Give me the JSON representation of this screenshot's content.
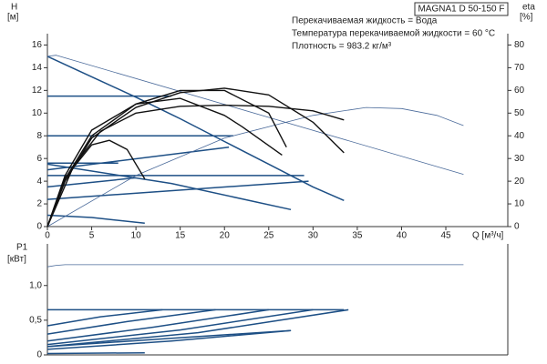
{
  "chart_data": [
    {
      "type": "line",
      "title": "MAGNA1 D 50-150 F",
      "annotations": [
        "Перекачиваемая жидкость = Вода",
        "Температура перекачиваемой жидкости = 60 °C",
        "Плотность = 983.2 кг/м³"
      ],
      "y_label": "H",
      "y_unit": "[м]",
      "y2_label": "eta",
      "y2_unit": "[%]",
      "x_label": "Q [м³/ч]",
      "xlim": [
        0,
        52
      ],
      "xticks": [
        0,
        5,
        10,
        15,
        20,
        25,
        30,
        35,
        40,
        45
      ],
      "ylim": [
        0,
        17
      ],
      "yticks": [
        0,
        2,
        4,
        6,
        8,
        10,
        12,
        14,
        16
      ],
      "y2lim": [
        0,
        85
      ],
      "y2ticks": [
        0,
        10,
        20,
        30,
        40,
        50,
        60,
        70,
        80
      ],
      "series": [
        {
          "color": "#1d4f85",
          "x": [
            0,
            5,
            10,
            15,
            20,
            25,
            30,
            33.5
          ],
          "values": [
            15,
            13.2,
            11.4,
            9.5,
            7.5,
            5.5,
            3.5,
            2.3
          ]
        },
        {
          "color": "#1d4f85",
          "x": [
            0,
            14
          ],
          "values": [
            11.5,
            11.5
          ]
        },
        {
          "color": "#1d4f85",
          "x": [
            0,
            21
          ],
          "values": [
            8,
            8
          ]
        },
        {
          "color": "#1d4f85",
          "x": [
            0,
            29
          ],
          "values": [
            4.5,
            4.5
          ]
        },
        {
          "color": "#1d4f85",
          "x": [
            0,
            8
          ],
          "values": [
            5.6,
            5.6
          ]
        },
        {
          "color": "#1d4f85",
          "x": [
            0,
            20.5
          ],
          "values": [
            5,
            7
          ]
        },
        {
          "color": "#1d4f85",
          "x": [
            0,
            29.5
          ],
          "values": [
            2.4,
            4
          ]
        },
        {
          "color": "#1d4f85",
          "x": [
            0,
            10
          ],
          "values": [
            3.5,
            4.3
          ]
        },
        {
          "color": "#1d4f85",
          "x": [
            0,
            14,
            27.5
          ],
          "values": [
            5.5,
            3.8,
            1.5
          ]
        },
        {
          "color": "#1d4f85",
          "x": [
            0,
            5,
            11
          ],
          "values": [
            1,
            0.8,
            0.3
          ]
        },
        {
          "color": "#4a6a9a",
          "x": [
            0,
            1,
            47
          ],
          "values": [
            15,
            15.1,
            4.6
          ]
        },
        {
          "color": "#4a6a9a",
          "x": [
            0,
            10,
            20,
            30,
            36,
            40,
            44,
            47
          ],
          "values": [
            0,
            4.5,
            7.8,
            9.8,
            10.5,
            10.4,
            9.8,
            8.9
          ]
        },
        {
          "color": "#111111",
          "axis": "y2",
          "x": [
            0,
            2,
            5,
            10,
            15,
            20,
            25,
            30,
            33.5
          ],
          "values": [
            0,
            20,
            39,
            52.5,
            59,
            61,
            58,
            46,
            32.5
          ]
        },
        {
          "color": "#111111",
          "axis": "y2",
          "x": [
            0,
            2,
            5,
            10,
            15,
            20,
            25,
            27
          ],
          "values": [
            0,
            21,
            40,
            54,
            60,
            60,
            50,
            35
          ]
        },
        {
          "color": "#111111",
          "axis": "y2",
          "x": [
            0,
            2,
            5,
            10,
            15,
            20,
            22,
            26.5
          ],
          "values": [
            0,
            22.5,
            42.5,
            54,
            56.5,
            49,
            44,
            31.5
          ]
        },
        {
          "color": "#111111",
          "axis": "y2",
          "x": [
            0,
            3,
            6,
            10,
            15,
            20,
            25,
            30,
            33.5
          ],
          "values": [
            0,
            27,
            42,
            50,
            53,
            53.5,
            53,
            51,
            47
          ]
        },
        {
          "color": "#111111",
          "axis": "y2",
          "x": [
            0,
            2,
            5,
            7,
            9,
            11
          ],
          "values": [
            0,
            21.5,
            36,
            38,
            34,
            21
          ]
        }
      ]
    },
    {
      "type": "line",
      "y_label": "P1",
      "y_unit": "[кВт]",
      "xlim": [
        0,
        52
      ],
      "ylim": [
        0,
        1.6
      ],
      "yticks": [
        0,
        {
          "value": 0.5,
          "label": "0,5"
        },
        {
          "value": 1.0,
          "label": "1,0"
        }
      ],
      "series": [
        {
          "color": "#4a6a9a",
          "x": [
            0,
            1,
            2,
            47
          ],
          "values": [
            1.27,
            1.29,
            1.3,
            1.3
          ]
        },
        {
          "color": "#1d4f85",
          "x": [
            0,
            33.5
          ],
          "values": [
            0.65,
            0.65
          ]
        },
        {
          "color": "#1d4f85",
          "x": [
            0,
            6,
            13
          ],
          "values": [
            0.42,
            0.55,
            0.65
          ]
        },
        {
          "color": "#1d4f85",
          "x": [
            0,
            9,
            19
          ],
          "values": [
            0.3,
            0.48,
            0.65
          ]
        },
        {
          "color": "#1d4f85",
          "x": [
            0,
            12,
            25
          ],
          "values": [
            0.2,
            0.4,
            0.65
          ]
        },
        {
          "color": "#1d4f85",
          "x": [
            0,
            15,
            30
          ],
          "values": [
            0.15,
            0.36,
            0.65
          ]
        },
        {
          "color": "#1d4f85",
          "x": [
            0,
            17,
            34
          ],
          "values": [
            0.12,
            0.32,
            0.65
          ]
        },
        {
          "color": "#1d4f85",
          "x": [
            0,
            14,
            27.5
          ],
          "values": [
            0.12,
            0.24,
            0.35
          ]
        },
        {
          "color": "#1d4f85",
          "x": [
            0,
            14,
            27.5
          ],
          "values": [
            0.08,
            0.2,
            0.35
          ]
        },
        {
          "color": "#1d4f85",
          "x": [
            0,
            11
          ],
          "values": [
            0.02,
            0.03
          ]
        }
      ]
    }
  ]
}
